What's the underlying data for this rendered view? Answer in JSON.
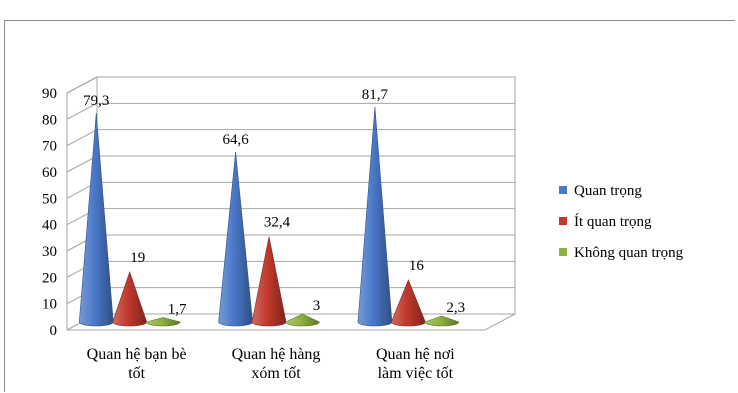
{
  "chart_data": {
    "type": "bar",
    "subtype": "3d-cone",
    "categories": [
      [
        "Quan hệ bạn bè",
        "tốt"
      ],
      [
        "Quan hệ hàng",
        "xóm tốt"
      ],
      [
        "Quan hệ nơi",
        "làm việc tốt"
      ]
    ],
    "series": [
      {
        "name": "Quan trọng",
        "color": "#4a78c8",
        "values": [
          79.3,
          64.6,
          81.7
        ],
        "labels": [
          "79,3",
          "64,6",
          "81,7"
        ]
      },
      {
        "name": "Ít quan trọng",
        "color": "#c0392b",
        "values": [
          19,
          32.4,
          16
        ],
        "labels": [
          "19",
          "32,4",
          "16"
        ]
      },
      {
        "name": "Không quan trọng",
        "color": "#8db33f",
        "values": [
          1.7,
          3,
          2.3
        ],
        "labels": [
          "1,7",
          "3",
          "2,3"
        ]
      }
    ],
    "yticks": [
      0,
      10,
      20,
      30,
      40,
      50,
      60,
      70,
      80,
      90
    ],
    "ylim": [
      0,
      90
    ],
    "title": "",
    "xlabel": "",
    "ylabel": "",
    "grid": true,
    "legend_position": "right"
  }
}
